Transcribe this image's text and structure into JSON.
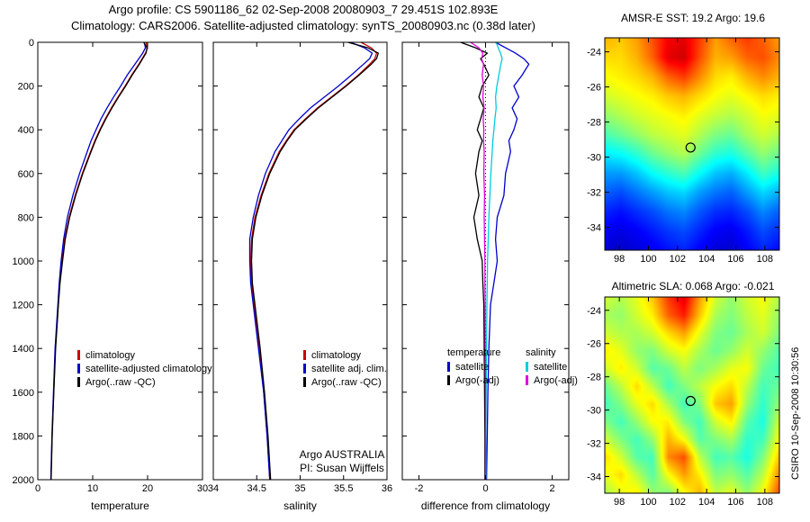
{
  "header": {
    "line1": "Argo profile: CS 5901186_62 02-Sep-2008 20080903_7 29.451S 102.893E",
    "line2": "Climatology: CARS2006. Satellite-adjusted climatology: synTS_20080903.nc (0.38d later)"
  },
  "watermark": "CSIRO 10-Sep-2008 10:30:56",
  "colors": {
    "climatology": "#cc0000",
    "satellite": "#0000cc",
    "argo": "#000000",
    "salinity_satellite": "#00ccdd",
    "salinity_argo": "#dd00dd"
  },
  "chart_data": [
    {
      "type": "line",
      "id": "temperature",
      "xlabel": "temperature",
      "xlim": [
        0,
        30
      ],
      "xticks": [
        0,
        10,
        20,
        30
      ],
      "ylim": [
        0,
        2000
      ],
      "yticks": [
        0,
        200,
        400,
        600,
        800,
        1000,
        1200,
        1400,
        1600,
        1800,
        2000
      ],
      "depths": [
        0,
        25,
        50,
        75,
        100,
        150,
        200,
        250,
        300,
        350,
        400,
        450,
        500,
        600,
        700,
        800,
        900,
        1000,
        1100,
        1200,
        1400,
        1600,
        1800,
        2000
      ],
      "series": [
        {
          "name": "climatology",
          "legend_label": "climatology",
          "color": "#cc0000",
          "values": [
            19.7,
            20.0,
            19.6,
            19.0,
            18.4,
            17.1,
            15.9,
            14.6,
            13.4,
            12.3,
            11.3,
            10.4,
            9.6,
            8.1,
            6.8,
            5.7,
            4.9,
            4.4,
            4.0,
            3.7,
            3.2,
            2.9,
            2.6,
            2.4
          ]
        },
        {
          "name": "satellite-adjusted climatology",
          "legend_label": "satellite-adjusted climatology",
          "color": "#0000cc",
          "values": [
            19.4,
            19.6,
            19.1,
            18.4,
            17.7,
            16.3,
            15.1,
            13.8,
            12.6,
            11.5,
            10.6,
            9.7,
            9.0,
            7.6,
            6.4,
            5.4,
            4.7,
            4.25,
            3.9,
            3.65,
            3.15,
            2.85,
            2.57,
            2.37
          ]
        },
        {
          "name": "Argo(..raw -QC)",
          "legend_label": "Argo(..raw -QC)",
          "color": "#000000",
          "values": [
            19.3,
            19.9,
            19.7,
            19.1,
            18.5,
            17.2,
            16.0,
            14.7,
            13.5,
            12.4,
            11.4,
            10.5,
            9.7,
            8.2,
            6.9,
            5.8,
            5.0,
            4.5,
            4.05,
            3.75,
            3.25,
            2.92,
            2.62,
            2.42
          ]
        }
      ]
    },
    {
      "type": "line",
      "id": "salinity",
      "xlabel": "salinity",
      "xlim": [
        34,
        36
      ],
      "xticks": [
        34,
        34.5,
        35,
        35.5,
        36
      ],
      "ylim": [
        0,
        2000
      ],
      "yticks": [
        0,
        200,
        400,
        600,
        800,
        1000,
        1200,
        1400,
        1600,
        1800,
        2000
      ],
      "depths": [
        0,
        25,
        50,
        75,
        100,
        150,
        200,
        250,
        300,
        350,
        400,
        450,
        500,
        600,
        700,
        800,
        900,
        1000,
        1100,
        1200,
        1400,
        1600,
        1800,
        2000
      ],
      "annotation": [
        "Argo AUSTRALIA",
        "PI: Susan Wijffels"
      ],
      "series": [
        {
          "name": "climatology",
          "legend_label": "climatology",
          "color": "#cc0000",
          "values": [
            35.7,
            35.82,
            35.88,
            35.86,
            35.8,
            35.67,
            35.52,
            35.36,
            35.2,
            35.06,
            34.93,
            34.84,
            34.76,
            34.64,
            34.55,
            34.48,
            34.44,
            34.43,
            34.44,
            34.47,
            34.53,
            34.58,
            34.62,
            34.65
          ]
        },
        {
          "name": "satellite adj. clim.",
          "legend_label": "satellite adj. clim.",
          "color": "#0000cc",
          "values": [
            35.58,
            35.74,
            35.83,
            35.8,
            35.73,
            35.59,
            35.44,
            35.28,
            35.12,
            34.99,
            34.87,
            34.79,
            34.71,
            34.6,
            34.52,
            34.46,
            34.42,
            34.42,
            34.43,
            34.46,
            34.52,
            34.58,
            34.62,
            34.65
          ]
        },
        {
          "name": "Argo(..raw -QC)",
          "legend_label": "Argo(..raw -QC)",
          "color": "#000000",
          "values": [
            35.55,
            35.78,
            35.9,
            35.88,
            35.82,
            35.68,
            35.53,
            35.37,
            35.21,
            35.07,
            34.94,
            34.85,
            34.77,
            34.65,
            34.56,
            34.49,
            34.45,
            34.44,
            34.45,
            34.48,
            34.54,
            34.59,
            34.63,
            34.66
          ]
        }
      ]
    },
    {
      "type": "line",
      "id": "difference",
      "xlabel": "difference from climatology",
      "xlim": [
        -2.5,
        2.5
      ],
      "xticks": [
        -2,
        0,
        2
      ],
      "ylim": [
        0,
        2000
      ],
      "yticks": [
        0,
        200,
        400,
        600,
        800,
        1000,
        1200,
        1400,
        1600,
        1800,
        2000
      ],
      "zeroline": true,
      "depths": [
        0,
        25,
        50,
        75,
        100,
        150,
        200,
        250,
        300,
        350,
        400,
        450,
        500,
        600,
        700,
        800,
        900,
        1000,
        1100,
        1200,
        1400,
        1600,
        1800,
        2000
      ],
      "legend_groups": [
        {
          "title": "temperature",
          "items": [
            {
              "label": "satellite",
              "color": "#0000cc"
            },
            {
              "label": "Argo(-adj)",
              "color": "#000000"
            }
          ]
        },
        {
          "title": "salinity",
          "items": [
            {
              "label": "satellite",
              "color": "#00ccdd"
            },
            {
              "label": "Argo(-adj)",
              "color": "#dd00dd"
            }
          ]
        }
      ],
      "series": [
        {
          "name": "temperature satellite",
          "color": "#0000cc",
          "values": [
            0.3,
            0.6,
            0.9,
            1.15,
            1.3,
            1.1,
            0.85,
            1.0,
            0.8,
            0.95,
            0.85,
            0.7,
            0.75,
            0.6,
            0.55,
            0.35,
            0.3,
            0.35,
            0.25,
            0.15,
            0.1,
            0.07,
            0.05,
            0.03
          ]
        },
        {
          "name": "temperature Argo(-adj)",
          "color": "#000000",
          "values": [
            -0.75,
            -0.3,
            0.05,
            -0.15,
            -0.05,
            0.1,
            -0.1,
            -0.2,
            -0.05,
            -0.15,
            -0.25,
            -0.1,
            -0.2,
            -0.3,
            -0.2,
            -0.35,
            -0.25,
            -0.1,
            -0.08,
            -0.05,
            -0.04,
            -0.03,
            -0.02,
            -0.02
          ]
        },
        {
          "name": "salinity satellite",
          "color": "#00ccdd",
          "values": [
            0.32,
            0.38,
            0.45,
            0.5,
            0.46,
            0.4,
            0.34,
            0.3,
            0.32,
            0.28,
            0.25,
            0.22,
            0.2,
            0.16,
            0.13,
            0.1,
            0.08,
            0.06,
            0.05,
            0.04,
            0.03,
            0.02,
            0.01,
            0.01
          ]
        },
        {
          "name": "salinity Argo(-adj)",
          "color": "#dd00dd",
          "values": [
            -0.45,
            -0.2,
            -0.08,
            -0.12,
            -0.06,
            -0.1,
            -0.06,
            -0.08,
            -0.04,
            -0.07,
            -0.05,
            -0.06,
            -0.04,
            -0.05,
            -0.03,
            -0.04,
            -0.03,
            -0.02,
            -0.02,
            -0.01,
            -0.01,
            0,
            0,
            0
          ]
        }
      ]
    },
    {
      "type": "heatmap",
      "id": "sst",
      "title": "AMSR-E SST: 19.2 Argo: 19.6",
      "colormap": "jet",
      "xlim": [
        97,
        109
      ],
      "xticks": [
        98,
        100,
        102,
        104,
        106,
        108
      ],
      "ylim": [
        -23.2,
        -35.3
      ],
      "yticks": [
        -24,
        -26,
        -28,
        -30,
        -32,
        -34
      ],
      "marker": {
        "lon": 102.893,
        "lat": -29.451
      },
      "grid": [
        [
          0.7,
          0.68,
          0.72,
          0.8,
          0.88,
          0.9,
          0.82,
          0.72,
          0.78,
          0.82,
          0.78,
          0.72
        ],
        [
          0.66,
          0.66,
          0.7,
          0.78,
          0.9,
          0.92,
          0.8,
          0.7,
          0.72,
          0.78,
          0.8,
          0.74
        ],
        [
          0.62,
          0.64,
          0.66,
          0.7,
          0.78,
          0.82,
          0.74,
          0.66,
          0.64,
          0.7,
          0.74,
          0.7
        ],
        [
          0.58,
          0.6,
          0.62,
          0.64,
          0.68,
          0.7,
          0.66,
          0.62,
          0.6,
          0.63,
          0.66,
          0.64
        ],
        [
          0.52,
          0.55,
          0.58,
          0.6,
          0.62,
          0.64,
          0.6,
          0.57,
          0.55,
          0.58,
          0.62,
          0.6
        ],
        [
          0.45,
          0.48,
          0.52,
          0.56,
          0.58,
          0.6,
          0.55,
          0.5,
          0.48,
          0.54,
          0.58,
          0.55
        ],
        [
          0.36,
          0.38,
          0.42,
          0.48,
          0.52,
          0.55,
          0.48,
          0.42,
          0.4,
          0.46,
          0.52,
          0.48
        ],
        [
          0.28,
          0.28,
          0.32,
          0.38,
          0.42,
          0.45,
          0.38,
          0.32,
          0.3,
          0.36,
          0.44,
          0.4
        ],
        [
          0.22,
          0.2,
          0.24,
          0.28,
          0.32,
          0.34,
          0.28,
          0.24,
          0.22,
          0.28,
          0.34,
          0.3
        ],
        [
          0.16,
          0.14,
          0.17,
          0.2,
          0.24,
          0.26,
          0.21,
          0.17,
          0.16,
          0.2,
          0.26,
          0.22
        ],
        [
          0.12,
          0.1,
          0.12,
          0.15,
          0.18,
          0.2,
          0.16,
          0.12,
          0.11,
          0.15,
          0.2,
          0.17
        ],
        [
          0.08,
          0.07,
          0.09,
          0.11,
          0.14,
          0.16,
          0.12,
          0.09,
          0.08,
          0.12,
          0.16,
          0.13
        ]
      ]
    },
    {
      "type": "heatmap",
      "id": "sla",
      "title": "Altimetric SLA: 0.068 Argo: -0.021",
      "colormap": "jet",
      "xlim": [
        97,
        109
      ],
      "xticks": [
        98,
        100,
        102,
        104,
        106,
        108
      ],
      "ylim": [
        -23.2,
        -35.0
      ],
      "yticks": [
        -24,
        -26,
        -28,
        -30,
        -32,
        -34
      ],
      "marker": {
        "lon": 102.893,
        "lat": -29.451
      },
      "grid": [
        [
          0.58,
          0.55,
          0.6,
          0.68,
          0.82,
          0.9,
          0.72,
          0.58,
          0.52,
          0.58,
          0.62,
          0.55
        ],
        [
          0.54,
          0.52,
          0.58,
          0.64,
          0.78,
          0.85,
          0.68,
          0.54,
          0.5,
          0.56,
          0.6,
          0.52
        ],
        [
          0.58,
          0.55,
          0.54,
          0.58,
          0.66,
          0.72,
          0.6,
          0.5,
          0.48,
          0.54,
          0.58,
          0.5
        ],
        [
          0.64,
          0.6,
          0.52,
          0.5,
          0.58,
          0.62,
          0.54,
          0.48,
          0.52,
          0.58,
          0.52,
          0.46
        ],
        [
          0.58,
          0.64,
          0.58,
          0.46,
          0.48,
          0.56,
          0.5,
          0.54,
          0.6,
          0.62,
          0.48,
          0.44
        ],
        [
          0.48,
          0.56,
          0.66,
          0.56,
          0.44,
          0.5,
          0.56,
          0.62,
          0.66,
          0.56,
          0.44,
          0.48
        ],
        [
          0.44,
          0.5,
          0.6,
          0.66,
          0.54,
          0.44,
          0.5,
          0.68,
          0.72,
          0.52,
          0.42,
          0.52
        ],
        [
          0.5,
          0.44,
          0.52,
          0.62,
          0.64,
          0.5,
          0.44,
          0.58,
          0.64,
          0.46,
          0.4,
          0.58
        ],
        [
          0.58,
          0.5,
          0.44,
          0.52,
          0.7,
          0.62,
          0.46,
          0.5,
          0.54,
          0.42,
          0.44,
          0.62
        ],
        [
          0.66,
          0.58,
          0.46,
          0.44,
          0.74,
          0.8,
          0.56,
          0.44,
          0.46,
          0.4,
          0.5,
          0.68
        ],
        [
          0.6,
          0.66,
          0.56,
          0.46,
          0.62,
          0.72,
          0.64,
          0.5,
          0.52,
          0.46,
          0.56,
          0.74
        ],
        [
          0.54,
          0.6,
          0.64,
          0.52,
          0.5,
          0.62,
          0.7,
          0.56,
          0.6,
          0.52,
          0.62,
          0.8
        ]
      ]
    }
  ]
}
